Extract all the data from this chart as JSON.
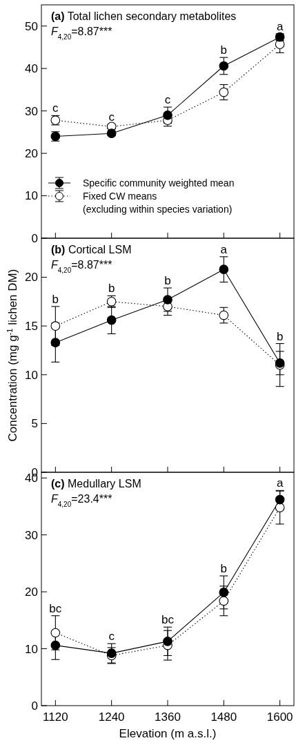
{
  "chart_data": [
    {
      "type": "line",
      "title": "(a) Total lichen secondary metabolites",
      "subtitle": "F$_{4,20}$=8.87***",
      "x": [
        1120,
        1240,
        1360,
        1480,
        1600
      ],
      "xlim": [
        1090,
        1630
      ],
      "xticks": [
        1120,
        1240,
        1360,
        1480,
        1600
      ],
      "ylim": [
        0,
        55
      ],
      "yticks": [
        0,
        10,
        20,
        30,
        40,
        50
      ],
      "tick_labels": "y",
      "marker": "circle",
      "legend": "bottom left",
      "grid": false,
      "series": [
        {
          "name": "Specific community weighted mean",
          "color": "#000000",
          "line_style": "solid",
          "values": [
            24.0,
            24.7,
            29.0,
            40.6,
            47.4
          ],
          "errors": [
            1.1,
            0.5,
            1.9,
            2.0,
            0.8
          ]
        },
        {
          "name": "Fixed CW means\n(excluding within species variation)",
          "color": "#000000",
          "line_style": "dotted",
          "values": [
            27.8,
            26.3,
            27.8,
            34.4,
            45.7
          ],
          "errors": [
            1.1,
            0.5,
            1.4,
            1.8,
            2.0
          ]
        }
      ],
      "annotations": [
        "c",
        "c",
        "c",
        "b",
        "a"
      ]
    },
    {
      "type": "line",
      "title": "(b) Cortical LSM",
      "subtitle": "F$_{4,20}$=8.87***",
      "ylabel": "Concentration (mg g$^{-1}$ lichen DM)",
      "x": [
        1120,
        1240,
        1360,
        1480,
        1600
      ],
      "xlim": [
        1090,
        1630
      ],
      "xticks": [
        1120,
        1240,
        1360,
        1480,
        1600
      ],
      "ylim": [
        0,
        24
      ],
      "yticks": [
        0,
        5,
        10,
        15,
        20
      ],
      "tick_labels": "y",
      "marker": "circle",
      "grid": false,
      "series": [
        {
          "color": "#000000",
          "line_style": "solid",
          "values": [
            13.3,
            15.6,
            17.7,
            20.8,
            11.2
          ],
          "errors": [
            2.0,
            1.4,
            1.2,
            1.3,
            1.2
          ]
        },
        {
          "color": "#000000",
          "line_style": "dotted",
          "values": [
            15.0,
            17.5,
            17.0,
            16.1,
            11.0
          ],
          "errors": [
            2.0,
            0.6,
            0.9,
            0.8,
            2.2
          ]
        }
      ],
      "annotations": [
        "b",
        "b",
        "b",
        "a",
        "b"
      ]
    },
    {
      "type": "line",
      "title": "(c) Medullary LSM",
      "subtitle": "F$_{4,20}$=23.4***",
      "xlabel": "Elevation (m a.s.l.)",
      "x": [
        1120,
        1240,
        1360,
        1480,
        1600
      ],
      "xlim": [
        1090,
        1630
      ],
      "xticks": [
        1120,
        1240,
        1360,
        1480,
        1600
      ],
      "ylim": [
        0,
        41
      ],
      "yticks": [
        0,
        10,
        20,
        30,
        40
      ],
      "marker": "circle",
      "grid": false,
      "series": [
        {
          "color": "#000000",
          "line_style": "solid",
          "values": [
            10.6,
            9.2,
            11.3,
            19.9,
            36.2
          ],
          "errors": [
            2.5,
            1.7,
            2.5,
            2.9,
            1.6
          ]
        },
        {
          "color": "#000000",
          "line_style": "dotted",
          "values": [
            12.8,
            8.8,
            10.6,
            18.4,
            34.8
          ],
          "errors": [
            3.0,
            1.4,
            2.6,
            2.6,
            2.9
          ]
        }
      ],
      "annotations": [
        "bc",
        "c",
        "bc",
        "b",
        "a"
      ]
    }
  ]
}
